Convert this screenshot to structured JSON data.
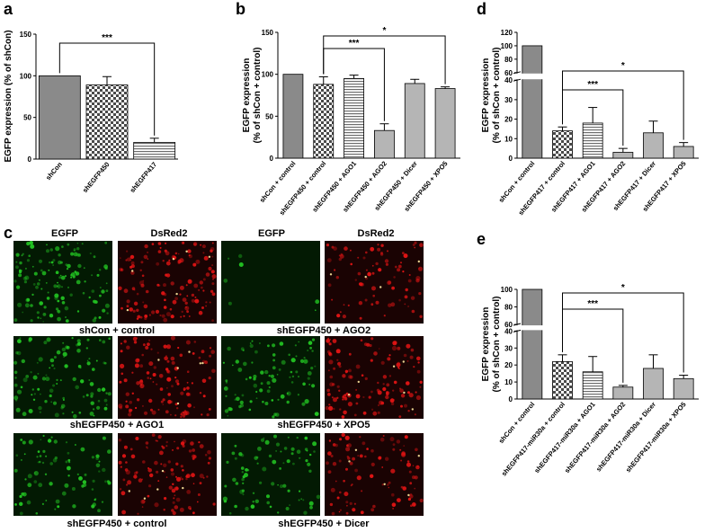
{
  "chart_data": [
    {
      "panel": "a",
      "type": "bar",
      "ylabel": "EGFP expression (% of shCon)",
      "ylim": [
        0,
        150
      ],
      "yticks": [
        0,
        50,
        100,
        150
      ],
      "categories": [
        "shCon",
        "shEGFP450",
        "shEGFP417"
      ],
      "values": [
        100,
        89,
        20
      ],
      "errors": [
        0,
        10,
        5
      ],
      "fills": [
        "solid",
        "check",
        "hatch-h"
      ],
      "significance": [
        {
          "from": 0,
          "to": 2,
          "label": "***"
        }
      ]
    },
    {
      "panel": "b",
      "type": "bar",
      "ylabel": "EGFP expression",
      "ylabel2": "(% of shCon + control)",
      "ylim": [
        0,
        150
      ],
      "yticks": [
        0,
        50,
        100,
        150
      ],
      "categories": [
        "shCon + control",
        "shEGFP450 + control",
        "shEGFP450 + AGO1",
        "shEGFP450 + AGO2",
        "shEGFP450 + Dicer",
        "shEGFP450 + XPO5"
      ],
      "values": [
        100,
        88,
        95,
        33,
        89,
        83
      ],
      "errors": [
        0,
        9,
        4,
        8,
        5,
        2
      ],
      "fills": [
        "solid",
        "check",
        "hatch-h",
        "solid-light",
        "solid-light",
        "solid-light"
      ],
      "significance": [
        {
          "from": 1,
          "to": 3,
          "label": "***"
        },
        {
          "from": 1,
          "to": 5,
          "label": "*"
        }
      ]
    },
    {
      "panel": "d",
      "type": "bar",
      "ylabel": "EGFP expression",
      "ylabel2": "(% of shCon + control)",
      "ylim": [
        0,
        120
      ],
      "axis_break": [
        40,
        60
      ],
      "yticks_low": [
        0,
        10,
        20,
        30,
        40
      ],
      "yticks_high": [
        60,
        80,
        100,
        120
      ],
      "categories": [
        "shCon + control",
        "shEGFP417 + control",
        "shEGFP417 + AGO1",
        "shEGFP417 + AGO2",
        "shEGFP417 + Dicer",
        "shEGFP417 + XPO5"
      ],
      "values": [
        100,
        14,
        18,
        3,
        13,
        6
      ],
      "errors": [
        0,
        2,
        8,
        2,
        6,
        2
      ],
      "fills": [
        "solid",
        "check",
        "hatch-h",
        "solid-light",
        "solid-light",
        "solid-light"
      ],
      "significance": [
        {
          "from": 1,
          "to": 3,
          "label": "***"
        },
        {
          "from": 1,
          "to": 5,
          "label": "*"
        }
      ]
    },
    {
      "panel": "e",
      "type": "bar",
      "ylabel": "EGFP expression",
      "ylabel2": "(% of shCon + control)",
      "ylim": [
        0,
        100
      ],
      "axis_break": [
        40,
        60
      ],
      "yticks_low": [
        0,
        10,
        20,
        30,
        40
      ],
      "yticks_high": [
        60,
        80,
        100
      ],
      "categories": [
        "shCon + control",
        "shEGFP417-miR30a + control",
        "shEGFP417-miR30a + AGO1",
        "shEGFP417-miR30a + AGO2",
        "shEGFP417-miR30a + Dicer",
        "shEGFP417-miR30a + XPO5"
      ],
      "values": [
        100,
        22,
        16,
        7,
        18,
        12
      ],
      "errors": [
        0,
        4,
        9,
        1,
        8,
        2
      ],
      "fills": [
        "solid",
        "check",
        "hatch-h",
        "solid-light",
        "solid-light",
        "solid-light"
      ],
      "significance": [
        {
          "from": 1,
          "to": 3,
          "label": "***"
        },
        {
          "from": 1,
          "to": 5,
          "label": "*"
        }
      ]
    }
  ],
  "micrographs": {
    "panel": "c",
    "headers": [
      "EGFP",
      "DsRed2",
      "EGFP",
      "DsRed2"
    ],
    "conditions": [
      "shCon + control",
      "shEGFP450 + AGO2",
      "shEGFP450 + AGO1",
      "shEGFP450 + XPO5",
      "shEGFP450 + control",
      "shEGFP450 + Dicer"
    ],
    "green_color": "#22c322",
    "red_color": "#e01414"
  },
  "colors": {
    "bar_dark": "#8a8a8a",
    "bar_light": "#b5b5b5",
    "background": "#ffffff"
  }
}
